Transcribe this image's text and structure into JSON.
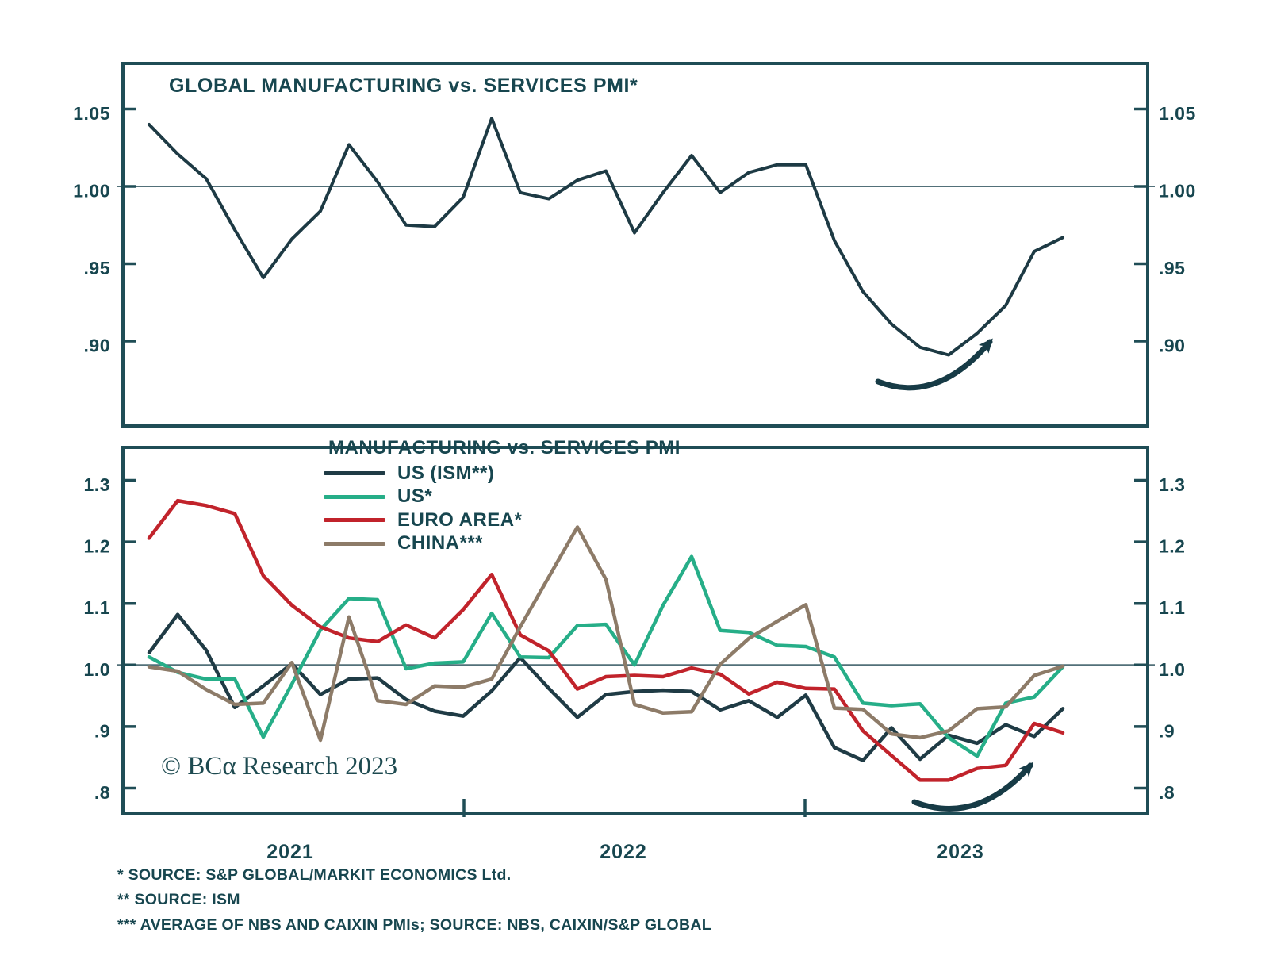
{
  "copyright_note": "© BCα Research 2023",
  "footnotes": [
    "* SOURCE: S&P GLOBAL/MARKIT ECONOMICS Ltd.",
    "** SOURCE: ISM",
    "*** AVERAGE OF NBS AND CAIXIN PMIs; SOURCE: NBS, CAIXIN/S&P GLOBAL"
  ],
  "x_axis": {
    "year_labels": [
      "2021",
      "2022",
      "2023"
    ]
  },
  "colors": {
    "ink": "#17464f",
    "frame": "#1f4d56",
    "grid": "#527079",
    "arrow": "#173b46",
    "background": "#ffffff"
  },
  "chart_data": [
    {
      "type": "line",
      "title": "GLOBAL MANUFACTURING vs. SERVICES PMI*",
      "x": {
        "unit": "month",
        "first_year": "2021",
        "points": 33
      },
      "ylim": [
        0.84,
        1.08
      ],
      "grid": "single reference line at 1.00",
      "gridline_value": 1.0,
      "legend_position": "none",
      "yticks": [
        {
          "value": 1.05,
          "label": "1.05"
        },
        {
          "value": 1.0,
          "label": "1.00"
        },
        {
          "value": 0.95,
          "label": ".95"
        },
        {
          "value": 0.9,
          "label": ".90"
        }
      ],
      "series": [
        {
          "name": "GLOBAL MANUFACTURING vs. SERVICES PMI",
          "color": "#1d3a44",
          "values": [
            1.04,
            1.021,
            1.005,
            0.972,
            0.941,
            0.966,
            0.984,
            1.027,
            1.003,
            0.975,
            0.974,
            0.993,
            1.044,
            0.996,
            0.992,
            1.004,
            1.01,
            0.97,
            0.996,
            1.02,
            0.996,
            1.009,
            1.014,
            1.014,
            0.965,
            0.932,
            0.911,
            0.896,
            0.891,
            0.905,
            0.923,
            0.958,
            0.967
          ]
        }
      ],
      "annotation": {
        "type": "curved-up-arrow",
        "meaning": "recent rebound"
      }
    },
    {
      "type": "line",
      "legend_title": "MANUFACTURING vs. SERVICES PMI",
      "x": {
        "unit": "month",
        "first_year": "2021",
        "points": 33
      },
      "ylim": [
        0.75,
        1.35
      ],
      "grid": "single reference line at 1.0",
      "gridline_value": 1.0,
      "legend_position": "top-center-inside",
      "yticks": [
        {
          "value": 1.3,
          "label": "1.3"
        },
        {
          "value": 1.2,
          "label": "1.2"
        },
        {
          "value": 1.1,
          "label": "1.1"
        },
        {
          "value": 1.0,
          "label": "1.0"
        },
        {
          "value": 0.9,
          "label": ".9"
        },
        {
          "value": 0.8,
          "label": ".8"
        }
      ],
      "series": [
        {
          "name": "US (ISM**)",
          "color": "#1f3b45",
          "values": [
            1.02,
            1.082,
            1.024,
            0.931,
            0.966,
            1.002,
            0.952,
            0.977,
            0.979,
            0.944,
            0.925,
            0.917,
            0.958,
            1.012,
            0.962,
            0.915,
            0.952,
            0.957,
            0.959,
            0.957,
            0.927,
            0.942,
            0.915,
            0.951,
            0.866,
            0.845,
            0.898,
            0.847,
            0.886,
            0.873,
            0.903,
            0.884,
            0.929
          ]
        },
        {
          "name": "US*",
          "color": "#26ae88",
          "values": [
            1.013,
            0.988,
            0.977,
            0.977,
            0.883,
            0.969,
            1.057,
            1.108,
            1.106,
            0.994,
            1.003,
            1.005,
            1.084,
            1.013,
            1.012,
            1.064,
            1.066,
            1.0,
            1.097,
            1.176,
            1.056,
            1.053,
            1.032,
            1.03,
            1.013,
            0.938,
            0.934,
            0.937,
            0.882,
            0.852,
            0.938,
            0.948,
            0.997
          ]
        },
        {
          "name": "EURO AREA*",
          "color": "#c1232b",
          "values": [
            1.206,
            1.267,
            1.259,
            1.246,
            1.145,
            1.097,
            1.062,
            1.044,
            1.038,
            1.065,
            1.044,
            1.09,
            1.147,
            1.049,
            1.023,
            0.961,
            0.981,
            0.983,
            0.981,
            0.995,
            0.985,
            0.953,
            0.972,
            0.962,
            0.961,
            0.893,
            0.853,
            0.813,
            0.813,
            0.832,
            0.837,
            0.905,
            0.89
          ]
        },
        {
          "name": "CHINA***",
          "color": "#8d7b68",
          "values": [
            0.997,
            0.99,
            0.96,
            0.936,
            0.938,
            1.004,
            0.878,
            1.078,
            0.942,
            0.936,
            0.966,
            0.964,
            0.977,
            1.062,
            1.143,
            1.224,
            1.139,
            0.936,
            0.922,
            0.924,
            1.001,
            1.043,
            1.071,
            1.098,
            0.93,
            0.928,
            0.888,
            0.882,
            0.893,
            0.929,
            0.932,
            0.983,
            0.998
          ]
        }
      ],
      "annotation": {
        "type": "curved-up-arrow",
        "meaning": "recent rebound"
      }
    }
  ]
}
